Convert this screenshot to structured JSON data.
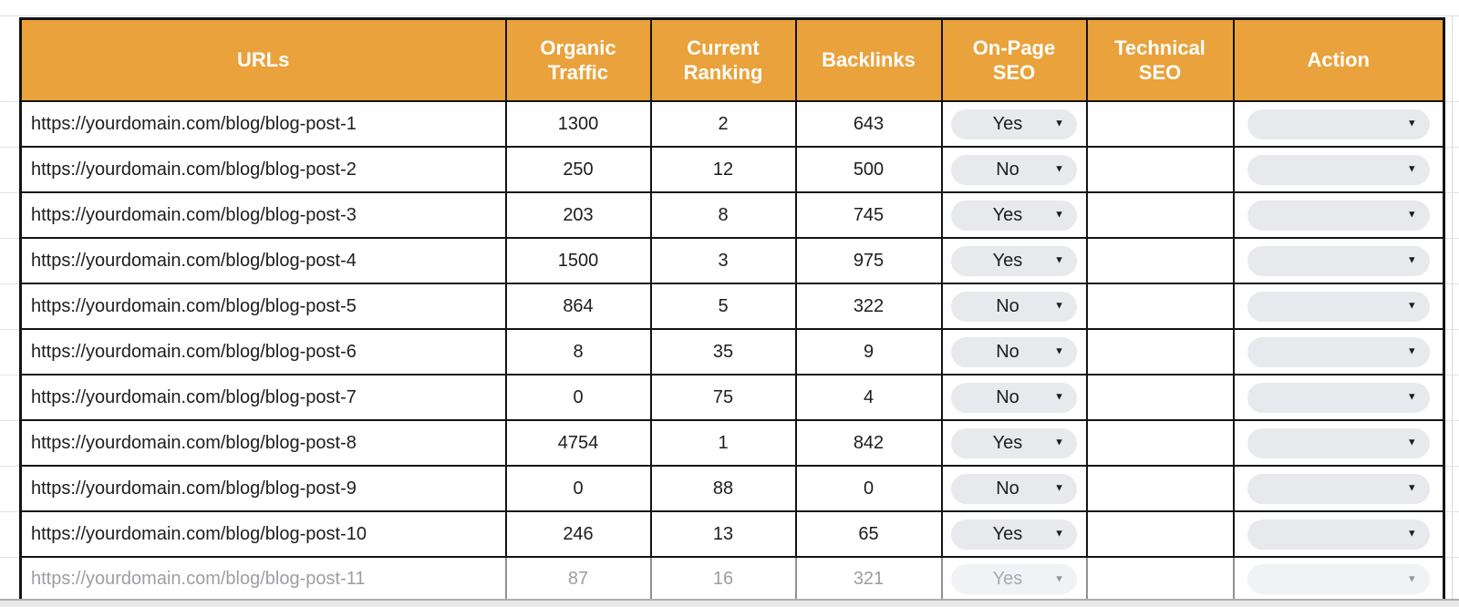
{
  "colors": {
    "header_bg": "#E9A23C",
    "header_text": "#ffffff",
    "table_border": "#141414",
    "chip_bg": "#E8E9EC",
    "muted_text": "#9B9EA3"
  },
  "icons": {
    "dropdown_arrow": "▼"
  },
  "table": {
    "headers": {
      "urls": "URLs",
      "organic_traffic": "Organic Traffic",
      "current_ranking": "Current Ranking",
      "backlinks": "Backlinks",
      "on_page_seo": "On-Page SEO",
      "technical_seo": "Technical SEO",
      "action": "Action"
    },
    "rows": [
      {
        "url": "https://yourdomain.com/blog/blog-post-1",
        "organic_traffic": "1300",
        "current_ranking": "2",
        "backlinks": "643",
        "on_page_seo": "Yes",
        "technical_seo": "",
        "action": "",
        "muted": false
      },
      {
        "url": "https://yourdomain.com/blog/blog-post-2",
        "organic_traffic": "250",
        "current_ranking": "12",
        "backlinks": "500",
        "on_page_seo": "No",
        "technical_seo": "",
        "action": "",
        "muted": false
      },
      {
        "url": "https://yourdomain.com/blog/blog-post-3",
        "organic_traffic": "203",
        "current_ranking": "8",
        "backlinks": "745",
        "on_page_seo": "Yes",
        "technical_seo": "",
        "action": "",
        "muted": false
      },
      {
        "url": "https://yourdomain.com/blog/blog-post-4",
        "organic_traffic": "1500",
        "current_ranking": "3",
        "backlinks": "975",
        "on_page_seo": "Yes",
        "technical_seo": "",
        "action": "",
        "muted": false
      },
      {
        "url": "https://yourdomain.com/blog/blog-post-5",
        "organic_traffic": "864",
        "current_ranking": "5",
        "backlinks": "322",
        "on_page_seo": "No",
        "technical_seo": "",
        "action": "",
        "muted": false
      },
      {
        "url": "https://yourdomain.com/blog/blog-post-6",
        "organic_traffic": "8",
        "current_ranking": "35",
        "backlinks": "9",
        "on_page_seo": "No",
        "technical_seo": "",
        "action": "",
        "muted": false
      },
      {
        "url": "https://yourdomain.com/blog/blog-post-7",
        "organic_traffic": "0",
        "current_ranking": "75",
        "backlinks": "4",
        "on_page_seo": "No",
        "technical_seo": "",
        "action": "",
        "muted": false
      },
      {
        "url": "https://yourdomain.com/blog/blog-post-8",
        "organic_traffic": "4754",
        "current_ranking": "1",
        "backlinks": "842",
        "on_page_seo": "Yes",
        "technical_seo": "",
        "action": "",
        "muted": false
      },
      {
        "url": "https://yourdomain.com/blog/blog-post-9",
        "organic_traffic": "0",
        "current_ranking": "88",
        "backlinks": "0",
        "on_page_seo": "No",
        "technical_seo": "",
        "action": "",
        "muted": false
      },
      {
        "url": "https://yourdomain.com/blog/blog-post-10",
        "organic_traffic": "246",
        "current_ranking": "13",
        "backlinks": "65",
        "on_page_seo": "Yes",
        "technical_seo": "",
        "action": "",
        "muted": false
      },
      {
        "url": "https://yourdomain.com/blog/blog-post-11",
        "organic_traffic": "87",
        "current_ranking": "16",
        "backlinks": "321",
        "on_page_seo": "Yes",
        "technical_seo": "",
        "action": "",
        "muted": true
      }
    ]
  }
}
